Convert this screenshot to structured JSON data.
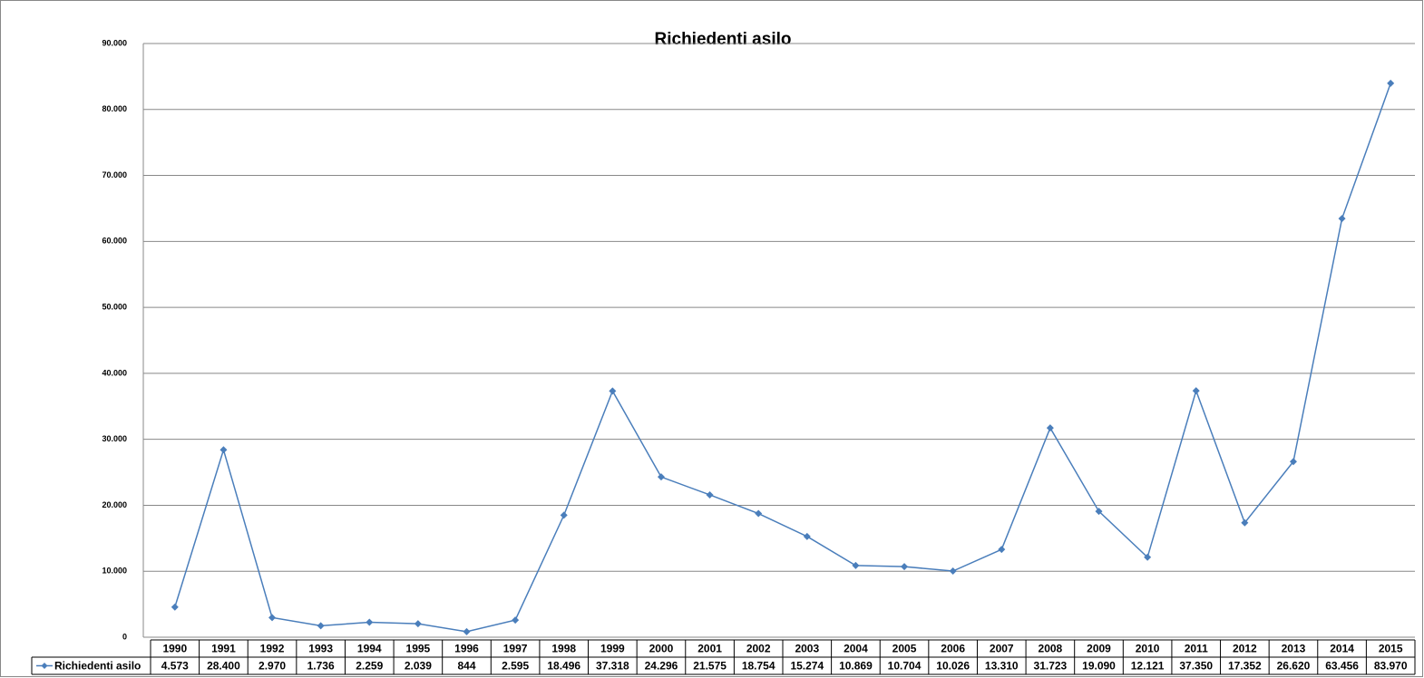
{
  "chart_data": {
    "type": "line",
    "title": "Richiedenti asilo",
    "categories": [
      "1990",
      "1991",
      "1992",
      "1993",
      "1994",
      "1995",
      "1996",
      "1997",
      "1998",
      "1999",
      "2000",
      "2001",
      "2002",
      "2003",
      "2004",
      "2005",
      "2006",
      "2007",
      "2008",
      "2009",
      "2010",
      "2011",
      "2012",
      "2013",
      "2014",
      "2015"
    ],
    "series": [
      {
        "name": "Richiedenti asilo",
        "color": "#4a7ebb",
        "values": [
          4573,
          28400,
          2970,
          1736,
          2259,
          2039,
          844,
          2595,
          18496,
          37318,
          24296,
          21575,
          18754,
          15274,
          10869,
          10704,
          10026,
          13310,
          31723,
          19090,
          12121,
          37350,
          17352,
          26620,
          63456,
          83970
        ],
        "value_labels": [
          "4.573",
          "28.400",
          "2.970",
          "1.736",
          "2.259",
          "2.039",
          "844",
          "2.595",
          "18.496",
          "37.318",
          "24.296",
          "21.575",
          "18.754",
          "15.274",
          "10.869",
          "10.704",
          "10.026",
          "13.310",
          "31.723",
          "19.090",
          "12.121",
          "37.350",
          "17.352",
          "26.620",
          "63.456",
          "83.970"
        ]
      }
    ],
    "ylim": [
      0,
      90000
    ],
    "yticks": [
      0,
      {
        "value": 10000,
        "label": "10.000"
      },
      {
        "value": 20000,
        "label": "20.000"
      },
      {
        "value": 30000,
        "label": "30.000"
      },
      {
        "value": 40000,
        "label": "40.000"
      },
      {
        "value": 50000,
        "label": "50.000"
      },
      {
        "value": 60000,
        "label": "60.000"
      },
      {
        "value": 70000,
        "label": "70.000"
      },
      {
        "value": 80000,
        "label": "80.000"
      },
      {
        "value": 90000,
        "label": "90.000"
      }
    ],
    "grid": true
  }
}
